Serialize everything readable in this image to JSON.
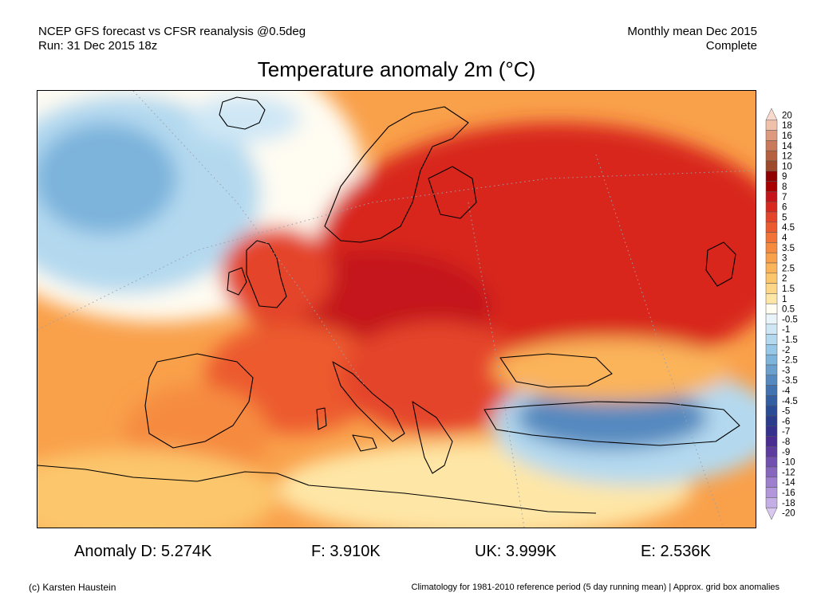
{
  "header": {
    "model_line": "NCEP GFS forecast vs CFSR reanalysis @0.5deg",
    "run_line": "Run: 31 Dec 2015 18z",
    "period_line": "Monthly mean Dec 2015",
    "status_line": "Complete"
  },
  "title": "Temperature anomaly 2m (°C)",
  "colorbar": {
    "labels": [
      "20",
      "18",
      "16",
      "14",
      "12",
      "10",
      "9",
      "8",
      "7",
      "6",
      "5",
      "4.5",
      "4",
      "3.5",
      "3",
      "2.5",
      "2",
      "1.5",
      "1",
      "0.5",
      "-0.5",
      "-1",
      "-1.5",
      "-2",
      "-2.5",
      "-3",
      "-3.5",
      "-4",
      "-4.5",
      "-5",
      "-6",
      "-7",
      "-8",
      "-9",
      "-10",
      "-12",
      "-14",
      "-16",
      "-18",
      "-20"
    ],
    "colors": [
      "#f7d9cd",
      "#efc0aa",
      "#dd9a7f",
      "#c97a5c",
      "#b5613f",
      "#9c4a2b",
      "#8f0000",
      "#a80000",
      "#c4141a",
      "#d8281e",
      "#e4452a",
      "#ec5a2f",
      "#f27337",
      "#f68b3f",
      "#f9a04a",
      "#fbb45a",
      "#fcc66c",
      "#fdd687",
      "#fee6a6",
      "#fffcf2",
      "#e9f3fa",
      "#cfe7f5",
      "#b4d9ef",
      "#98c8e7",
      "#7db4dc",
      "#6a9fce",
      "#5589bf",
      "#4272b0",
      "#345ea2",
      "#2a4b95",
      "#2b3c8f",
      "#36318f",
      "#4a2c93",
      "#5d3b9f",
      "#7250b0",
      "#8766c0",
      "#9d7ecf",
      "#b196dc",
      "#c4aee6",
      "#d8c8f0"
    ]
  },
  "stats": {
    "d": "Anomaly D: 5.274K",
    "f": "F: 3.910K",
    "uk": "UK: 3.999K",
    "e": "E: 2.536K"
  },
  "footer": {
    "copyright": "(c) Karsten Haustein",
    "footnote": "Climatology for 1981-2010 reference period (5 day running mean) | Approx. grid box anomalies"
  }
}
